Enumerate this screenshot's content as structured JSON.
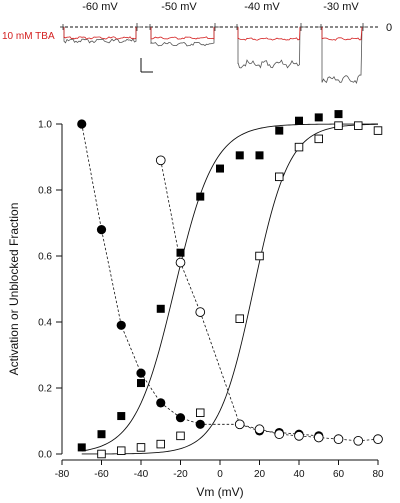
{
  "colors": {
    "tba_accent": "#d42020",
    "ink": "#111111",
    "control_trace": "#555555"
  },
  "traces": {
    "zero_label": "0",
    "tba_label": "10 mM TBA",
    "voltages": [
      "-60 mV",
      "-50 mV",
      "-40 mV",
      "-30 mV"
    ]
  },
  "chart_data": {
    "type": "scatter",
    "xlabel": "Vm (mV)",
    "ylabel": "Activation or Unblocked Fraction",
    "xlim": [
      -80,
      80
    ],
    "ylim": [
      0,
      1.0
    ],
    "xticks": [
      -80,
      -60,
      -40,
      -20,
      0,
      20,
      40,
      60,
      80
    ],
    "yticks": [
      0.0,
      0.2,
      0.4,
      0.6,
      0.8,
      1.0
    ],
    "ytick_labels": [
      "0.0",
      "0.2",
      "0.4",
      "0.6",
      "0.8",
      "1.0"
    ],
    "grid": false,
    "series": [
      {
        "marker": "filled-square",
        "line": "none",
        "x": [
          -70,
          -60,
          -50,
          -40,
          -30,
          -20,
          -10,
          0,
          10,
          20,
          30,
          40,
          50,
          60
        ],
        "y": [
          0.02,
          0.06,
          0.115,
          0.215,
          0.44,
          0.61,
          0.78,
          0.865,
          0.905,
          0.905,
          0.98,
          1.01,
          1.02,
          1.03
        ]
      },
      {
        "marker": "open-square",
        "line": "none",
        "x": [
          -60,
          -50,
          -40,
          -30,
          -20,
          -10,
          10,
          20,
          30,
          40,
          50,
          60,
          70,
          80
        ],
        "y": [
          0.0,
          0.01,
          0.02,
          0.03,
          0.055,
          0.125,
          0.41,
          0.6,
          0.84,
          0.93,
          0.955,
          0.995,
          0.995,
          0.98
        ]
      },
      {
        "marker": "filled-circle",
        "line": "dashed",
        "x": [
          -70,
          -60,
          -50,
          -40,
          -30,
          -20,
          -10,
          10,
          20,
          30,
          40,
          50
        ],
        "y": [
          1.0,
          0.68,
          0.39,
          0.245,
          0.155,
          0.11,
          0.09,
          0.09,
          0.07,
          0.065,
          0.06,
          0.055
        ]
      },
      {
        "marker": "open-circle",
        "line": "dashed",
        "x": [
          -30,
          -20,
          -10,
          10,
          20,
          30,
          40,
          50,
          60,
          70,
          80
        ],
        "y": [
          0.89,
          0.58,
          0.43,
          0.09,
          0.075,
          0.06,
          0.055,
          0.05,
          0.045,
          0.04,
          0.045
        ]
      }
    ],
    "fits": [
      {
        "type": "boltzmann",
        "v_half": -23,
        "slope": 10,
        "line": "solid"
      },
      {
        "type": "boltzmann",
        "v_half": 17,
        "slope": 9,
        "line": "solid"
      }
    ]
  }
}
